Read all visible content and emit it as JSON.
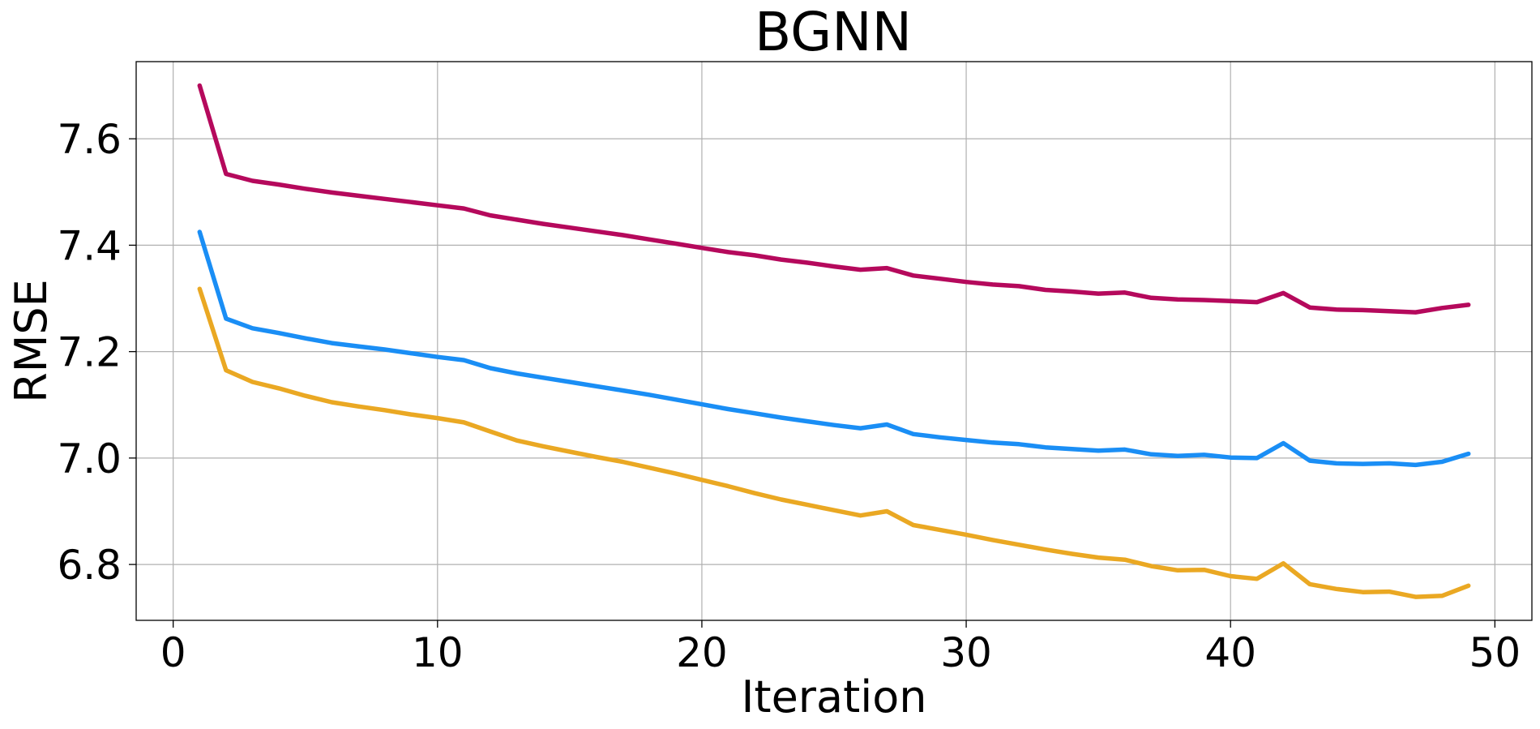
{
  "chart_data": {
    "type": "line",
    "title": "BGNN",
    "xlabel": "Iteration",
    "ylabel": "RMSE",
    "xlim": [
      -1.4,
      51.4
    ],
    "ylim": [
      6.695,
      7.745
    ],
    "xticks": [
      0,
      10,
      20,
      30,
      40,
      50
    ],
    "yticks": [
      6.8,
      7.0,
      7.2,
      7.4,
      7.6
    ],
    "xtick_labels": [
      "0",
      "10",
      "20",
      "30",
      "40",
      "50"
    ],
    "ytick_labels": [
      "6.8",
      "7.0",
      "7.2",
      "7.4",
      "7.6"
    ],
    "grid": true,
    "x": [
      1,
      2,
      3,
      4,
      5,
      6,
      7,
      8,
      9,
      10,
      11,
      12,
      13,
      14,
      15,
      16,
      17,
      18,
      19,
      20,
      21,
      22,
      23,
      24,
      25,
      26,
      27,
      28,
      29,
      30,
      31,
      32,
      33,
      34,
      35,
      36,
      37,
      38,
      39,
      40,
      41,
      42,
      43,
      44,
      45,
      46,
      47,
      48,
      49
    ],
    "series": [
      {
        "color": "#b5095c",
        "values": [
          7.7,
          7.534,
          7.521,
          7.514,
          7.506,
          7.499,
          7.493,
          7.487,
          7.481,
          7.475,
          7.469,
          7.456,
          7.448,
          7.44,
          7.433,
          7.426,
          7.419,
          7.411,
          7.403,
          7.395,
          7.387,
          7.381,
          7.373,
          7.367,
          7.36,
          7.354,
          7.357,
          7.343,
          7.337,
          7.331,
          7.326,
          7.323,
          7.316,
          7.313,
          7.309,
          7.311,
          7.301,
          7.298,
          7.297,
          7.295,
          7.293,
          7.31,
          7.283,
          7.279,
          7.278,
          7.276,
          7.274,
          7.282,
          7.288
        ]
      },
      {
        "color": "#1a8ef5",
        "values": [
          7.425,
          7.262,
          7.244,
          7.235,
          7.225,
          7.216,
          7.21,
          7.204,
          7.197,
          7.19,
          7.184,
          7.169,
          7.159,
          7.151,
          7.143,
          7.135,
          7.127,
          7.119,
          7.11,
          7.101,
          7.092,
          7.084,
          7.076,
          7.069,
          7.062,
          7.056,
          7.063,
          7.045,
          7.039,
          7.034,
          7.029,
          7.026,
          7.02,
          7.017,
          7.014,
          7.016,
          7.007,
          7.004,
          7.006,
          7.001,
          7.0,
          7.028,
          6.995,
          6.99,
          6.989,
          6.99,
          6.987,
          6.993,
          7.008
        ]
      },
      {
        "color": "#eaa823",
        "values": [
          7.318,
          7.165,
          7.143,
          7.131,
          7.117,
          7.105,
          7.097,
          7.09,
          7.082,
          7.075,
          7.067,
          7.05,
          7.033,
          7.022,
          7.012,
          7.002,
          6.993,
          6.982,
          6.971,
          6.959,
          6.947,
          6.934,
          6.922,
          6.912,
          6.902,
          6.892,
          6.9,
          6.874,
          6.865,
          6.856,
          6.846,
          6.837,
          6.828,
          6.82,
          6.813,
          6.809,
          6.797,
          6.789,
          6.79,
          6.778,
          6.773,
          6.802,
          6.763,
          6.754,
          6.748,
          6.749,
          6.739,
          6.741,
          6.76
        ]
      }
    ]
  }
}
